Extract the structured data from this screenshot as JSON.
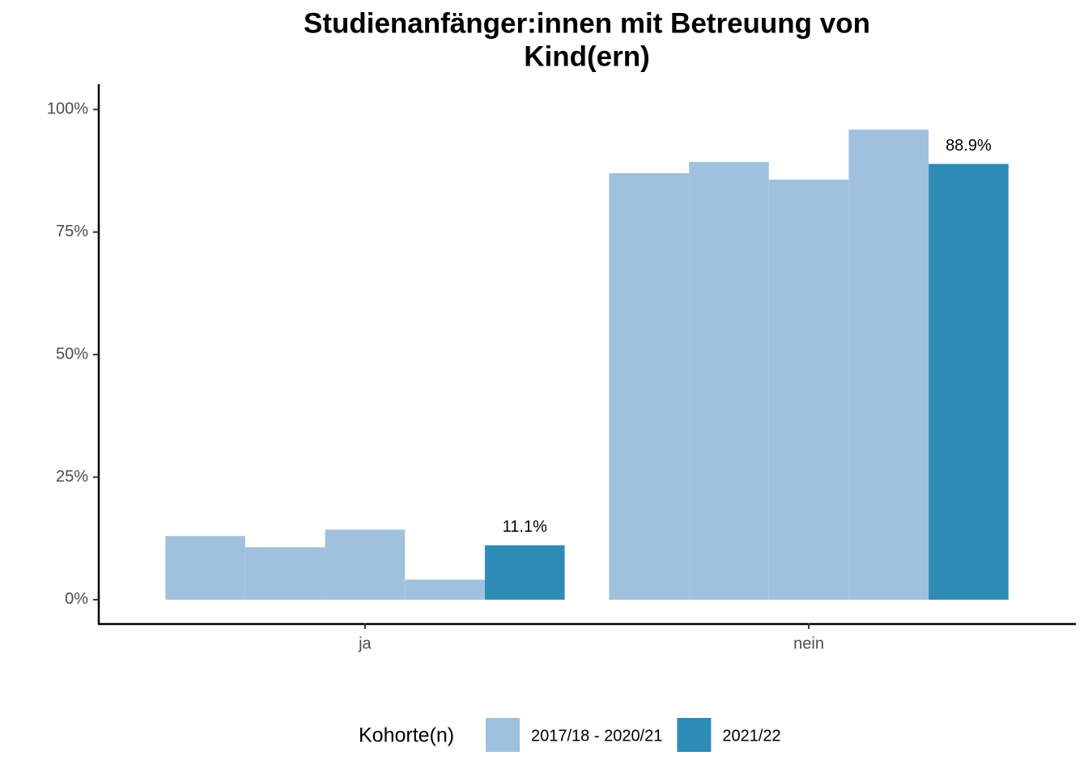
{
  "chart_data": {
    "type": "bar",
    "title": [
      "Studienanfänger:innen mit Betreuung von",
      "Kind(ern)"
    ],
    "categories": [
      "ja",
      "nein"
    ],
    "series": [
      {
        "name": "2017/18 - 2020/21",
        "color": "#a0c1de",
        "values": [
          [
            13.0,
            10.7,
            14.3,
            4.1
          ],
          [
            87.0,
            89.3,
            85.7,
            95.9
          ]
        ]
      },
      {
        "name": "2021/22",
        "color": "#2e8bb6",
        "values": [
          11.1,
          88.9
        ],
        "value_labels": [
          "11.1%",
          "88.9%"
        ]
      }
    ],
    "ylim": [
      -4.8,
      105
    ],
    "yticks": [
      {
        "value": 0,
        "label": "0%"
      },
      {
        "value": 25,
        "label": "25%"
      },
      {
        "value": 50,
        "label": "50%"
      },
      {
        "value": 75,
        "label": "75%"
      },
      {
        "value": 100,
        "label": "100%"
      }
    ],
    "legend_title": "Kohorte(n)",
    "legend_position": "bottom",
    "grid": false
  }
}
